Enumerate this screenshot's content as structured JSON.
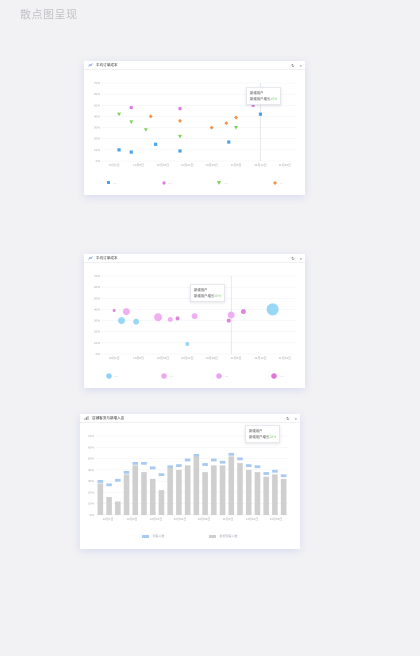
{
  "page": {
    "title": "散点图呈现"
  },
  "cards": [
    {
      "title": "平均订单成本",
      "controls": {
        "refresh": "↻",
        "close": "×"
      },
      "tooltip": {
        "line1": "新增用户",
        "line2": "新增用户增长",
        "change": "15%"
      },
      "legend": [
        "—",
        "—",
        "—",
        "—"
      ]
    },
    {
      "title": "平均订单成本",
      "controls": {
        "refresh": "↻",
        "close": "×"
      },
      "tooltip": {
        "line1": "新增用户",
        "line2": "新增用户增长",
        "change": "15%"
      },
      "legend": [
        "—",
        "—",
        "—",
        "—"
      ]
    },
    {
      "title": "店铺客流与新增入店",
      "controls": {
        "refresh": "↻",
        "close": "×"
      },
      "tooltip": {
        "line1": "新增用户",
        "line2": "新增用户增长",
        "change": "15%"
      },
      "legend": [
        "到客人数",
        "新增到客人数"
      ]
    }
  ],
  "colors": {
    "blue": "#4aa3e8",
    "pink": "#e07be0",
    "green": "#7bd45a",
    "orange": "#f0954a",
    "bubble_blue": "#8ed3f5",
    "bubble_pink": "#eea6ef",
    "bubble_magenta": "#de77d8",
    "bar_gray": "#cfcfcf",
    "bar_blue": "#a7c9f2"
  },
  "chart_data": [
    {
      "type": "scatter",
      "title": "平均订单成本",
      "x": [
        "10月1日",
        "10月8日",
        "10月15日",
        "10月22日",
        "10月29日",
        "11月5日",
        "11月12日",
        "11月19日"
      ],
      "yticks": [
        "0%",
        "10%",
        "20%",
        "30%",
        "40%",
        "50%",
        "60%",
        "70%"
      ],
      "ylim": [
        0,
        70
      ],
      "series": [
        {
          "color": "blue",
          "shape": "square",
          "points": [
            [
              0.2,
              10
            ],
            [
              0.7,
              8
            ],
            [
              1.7,
              15
            ],
            [
              2.7,
              9
            ],
            [
              4.7,
              17
            ],
            [
              6,
              42
            ]
          ]
        },
        {
          "color": "pink",
          "shape": "circle",
          "points": [
            [
              0.7,
              48
            ],
            [
              2.7,
              47
            ],
            [
              5.7,
              50
            ]
          ]
        },
        {
          "color": "green",
          "shape": "triangle",
          "points": [
            [
              0.2,
              42
            ],
            [
              0.7,
              35
            ],
            [
              1.3,
              28
            ],
            [
              2.7,
              22
            ],
            [
              5,
              30
            ]
          ]
        },
        {
          "color": "orange",
          "shape": "diamond",
          "points": [
            [
              1.5,
              40
            ],
            [
              2.7,
              36
            ],
            [
              4,
              30
            ],
            [
              4.6,
              34
            ],
            [
              5,
              39
            ]
          ]
        }
      ],
      "crosshair_x": 6.0
    },
    {
      "type": "scatter",
      "title": "平均订单成本",
      "x": [
        "10月1日",
        "10月8日",
        "10月15日",
        "10月22日",
        "10月29日",
        "11月5日",
        "11月12日",
        "11月19日"
      ],
      "yticks": [
        "0%",
        "10%",
        "20%",
        "30%",
        "40%",
        "50%",
        "60%",
        "70%"
      ],
      "ylim": [
        0,
        70
      ],
      "series": [
        {
          "color": "bubble_blue",
          "shape": "bubble",
          "points": [
            [
              0.3,
              30,
              3.5
            ],
            [
              0.9,
              29,
              3
            ],
            [
              3,
              9,
              2
            ],
            [
              6.5,
              40,
              6
            ]
          ]
        },
        {
          "color": "bubble_pink",
          "shape": "bubble",
          "points": [
            [
              0.5,
              38,
              3.5
            ],
            [
              1.8,
              33,
              4
            ],
            [
              2.3,
              31,
              2.5
            ],
            [
              3.3,
              34,
              3
            ],
            [
              4.8,
              35,
              3.5
            ]
          ]
        },
        {
          "color": "bubble_magenta",
          "shape": "bubble",
          "points": [
            [
              0,
              39,
              1.5
            ],
            [
              2.6,
              32,
              2
            ],
            [
              4.7,
              30,
              2
            ],
            [
              5.3,
              38,
              2.5
            ]
          ]
        }
      ],
      "crosshair_x": 4.8
    },
    {
      "type": "bar",
      "title": "店铺客流与新增入店",
      "categories": [
        "1",
        "2",
        "3",
        "4",
        "5",
        "6",
        "7",
        "8",
        "9",
        "10",
        "11",
        "12",
        "13",
        "14",
        "15",
        "16",
        "17",
        "18",
        "19",
        "20",
        "21",
        "22"
      ],
      "xticks": [
        "10月1日",
        "10月8日",
        "10月15日",
        "10月22日",
        "10月29日",
        "11月5日",
        "11月12日",
        "11月19日"
      ],
      "yticks": [
        "0%",
        "10%",
        "20%",
        "30%",
        "40%",
        "50%",
        "60%",
        "70%"
      ],
      "ylim": [
        0,
        70
      ],
      "series": [
        {
          "name": "到客人数",
          "color": "bar_gray",
          "values": [
            28,
            16,
            12,
            36,
            44,
            38,
            32,
            22,
            42,
            40,
            44,
            52,
            38,
            44,
            44,
            52,
            46,
            40,
            38,
            34,
            36,
            32
          ]
        },
        {
          "name": "新增到客人数",
          "color": "bar_blue",
          "values": [
            31,
            28,
            32,
            39,
            47,
            47,
            43,
            37,
            44,
            45,
            50,
            54,
            46,
            50,
            48,
            55,
            51,
            45,
            44,
            38,
            40,
            36
          ]
        }
      ]
    }
  ]
}
